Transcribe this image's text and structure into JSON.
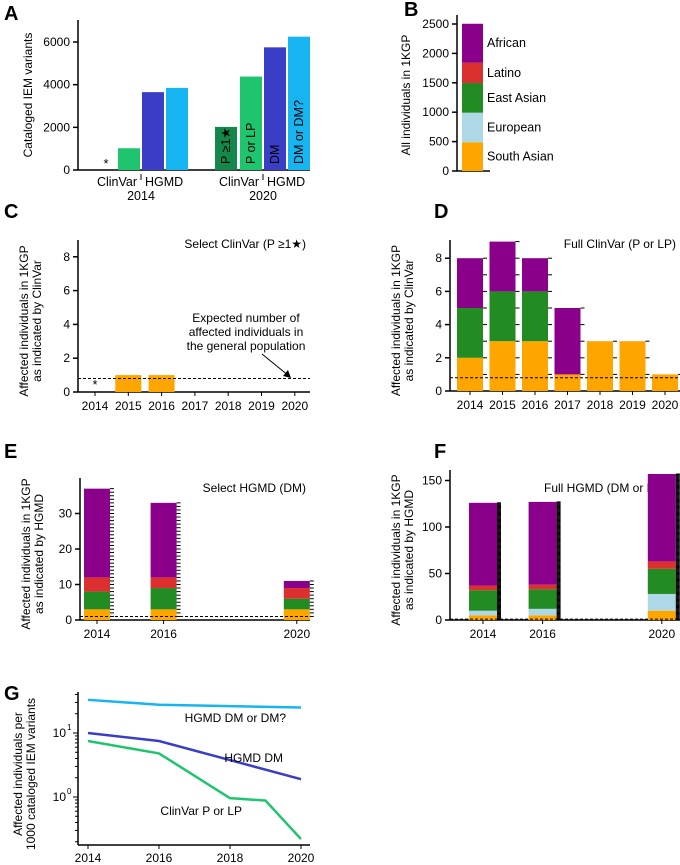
{
  "colors": {
    "African": "#8b008b",
    "Latino": "#dc2f2f",
    "East Asian": "#228b22",
    "European": "#add8e6",
    "South Asian": "#ffa500",
    "ClinVar P>=1star": "#14874a",
    "ClinVar P or LP": "#1fc46e",
    "HGMD DM": "#3a3ec6",
    "HGMD DM or DM?": "#17b4f2"
  },
  "chart_data": [
    {
      "panel": "A",
      "type": "bar",
      "ylabel": "Cataloged IEM variants",
      "ylim": [
        0,
        7000
      ],
      "yticks": [
        0,
        2000,
        4000,
        6000
      ],
      "groups": [
        {
          "year": "2014",
          "sources": [
            "ClinVar",
            "HGMD"
          ]
        },
        {
          "year": "2020",
          "sources": [
            "ClinVar",
            "HGMD"
          ]
        }
      ],
      "series": [
        {
          "key": "ClinVar P>=1star",
          "label": "P ≥1★",
          "values": [
            0,
            2020
          ]
        },
        {
          "key": "ClinVar P or LP",
          "label": "P or LP",
          "values": [
            1020,
            4380
          ]
        },
        {
          "key": "HGMD DM",
          "label": "DM",
          "values": [
            3650,
            5750
          ]
        },
        {
          "key": "HGMD DM or DM?",
          "label": "DM or DM?",
          "values": [
            3850,
            6250
          ]
        }
      ],
      "annotation": "*"
    },
    {
      "panel": "B",
      "type": "bar",
      "stacked": true,
      "ylabel": "All individuals in 1KGP",
      "ylim": [
        0,
        2600
      ],
      "yticks": [
        0,
        500,
        1000,
        1500,
        2000,
        2500
      ],
      "segments": [
        {
          "name": "South Asian",
          "value": 489
        },
        {
          "name": "European",
          "value": 503
        },
        {
          "name": "East Asian",
          "value": 504
        },
        {
          "name": "Latino",
          "value": 347
        },
        {
          "name": "African",
          "value": 661
        }
      ]
    },
    {
      "panel": "C",
      "type": "bar",
      "stacked": true,
      "title": "Select ClinVar (P ≥1★)",
      "ylabel": [
        "Affected individuals in 1KGP",
        "as indicated by ClinVar"
      ],
      "ylim": [
        0,
        9
      ],
      "yticks": [
        0,
        2,
        4,
        6,
        8
      ],
      "categories": [
        "2014",
        "2015",
        "2016",
        "2017",
        "2018",
        "2019",
        "2020"
      ],
      "series": [
        {
          "name": "South Asian",
          "values": [
            0,
            1,
            1,
            0,
            0,
            0,
            0
          ]
        }
      ],
      "expected_line": 0.8,
      "annotation": [
        "Expected number of",
        "affected individuals in",
        "the general population"
      ],
      "marker_2014": "*"
    },
    {
      "panel": "D",
      "type": "bar",
      "stacked": true,
      "title": "Full ClinVar (P or LP)",
      "ylabel": [
        "Affected individuals in 1KGP",
        "as indicated by ClinVar"
      ],
      "ylim": [
        0,
        9.3
      ],
      "yticks": [
        0,
        2,
        4,
        6,
        8
      ],
      "categories": [
        "2014",
        "2015",
        "2016",
        "2017",
        "2018",
        "2019",
        "2020"
      ],
      "series": [
        {
          "name": "South Asian",
          "values": [
            2,
            3,
            3,
            1,
            3,
            3,
            1
          ]
        },
        {
          "name": "European",
          "values": [
            0,
            0,
            0,
            0,
            0,
            0,
            0
          ]
        },
        {
          "name": "East Asian",
          "values": [
            3,
            3,
            3,
            0,
            0,
            0,
            0
          ]
        },
        {
          "name": "Latino",
          "values": [
            0,
            0,
            0,
            0,
            0,
            0,
            0
          ]
        },
        {
          "name": "African",
          "values": [
            3,
            3,
            2,
            4,
            0,
            0,
            0
          ]
        }
      ],
      "expected_line": 0.8
    },
    {
      "panel": "E",
      "type": "bar",
      "stacked": true,
      "title": "Select HGMD (DM)",
      "ylabel": [
        "Affected individuals in 1KGP",
        "as indicated by HGMD"
      ],
      "ylim": [
        0,
        38
      ],
      "yticks": [
        0,
        10,
        20,
        30
      ],
      "categories": [
        "2014",
        "2016",
        "2020"
      ],
      "xrange": [
        2014,
        2020
      ],
      "series": [
        {
          "name": "South Asian",
          "values": [
            3,
            3,
            3
          ]
        },
        {
          "name": "European",
          "values": [
            0,
            0,
            0
          ]
        },
        {
          "name": "East Asian",
          "values": [
            5,
            6,
            3
          ]
        },
        {
          "name": "Latino",
          "values": [
            4,
            3,
            3
          ]
        },
        {
          "name": "African",
          "values": [
            25,
            21,
            2
          ]
        }
      ],
      "expected_line": 1
    },
    {
      "panel": "F",
      "type": "bar",
      "stacked": true,
      "title": "Full HGMD (DM or DM?)",
      "ylabel": [
        "Affected individuals in 1KGP",
        "as indicated by HGMD"
      ],
      "ylim": [
        0,
        165
      ],
      "yticks": [
        0,
        50,
        100,
        150
      ],
      "categories": [
        "2014",
        "2016",
        "2020"
      ],
      "xrange": [
        2014,
        2020
      ],
      "series": [
        {
          "name": "South Asian",
          "values": [
            5,
            5,
            10
          ]
        },
        {
          "name": "European",
          "values": [
            5,
            7,
            18
          ]
        },
        {
          "name": "East Asian",
          "values": [
            22,
            21,
            27
          ]
        },
        {
          "name": "Latino",
          "values": [
            5,
            5,
            8
          ]
        },
        {
          "name": "African",
          "values": [
            89,
            89,
            94
          ]
        }
      ],
      "expected_line": 1
    },
    {
      "panel": "G",
      "type": "line",
      "yscale": "log",
      "ylabel": [
        "Affected individuals per",
        "1000 cataloged IEM variants"
      ],
      "xlim": [
        2014,
        2020
      ],
      "xticks": [
        2014,
        2016,
        2018,
        2020
      ],
      "ylim": [
        0.17,
        45
      ],
      "series": [
        {
          "name": "HGMD DM or DM?",
          "key": "HGMD DM or DM?",
          "x": [
            2014,
            2016,
            2020
          ],
          "y": [
            33,
            27.6,
            25
          ]
        },
        {
          "name": "HGMD DM",
          "key": "HGMD DM",
          "x": [
            2014,
            2016,
            2020
          ],
          "y": [
            10,
            7.5,
            1.9
          ]
        },
        {
          "name": "ClinVar P or LP",
          "key": "ClinVar P or LP",
          "x": [
            2014,
            2016,
            2018,
            2019,
            2020
          ],
          "y": [
            7.5,
            4.8,
            0.96,
            0.88,
            0.22
          ]
        }
      ]
    }
  ]
}
